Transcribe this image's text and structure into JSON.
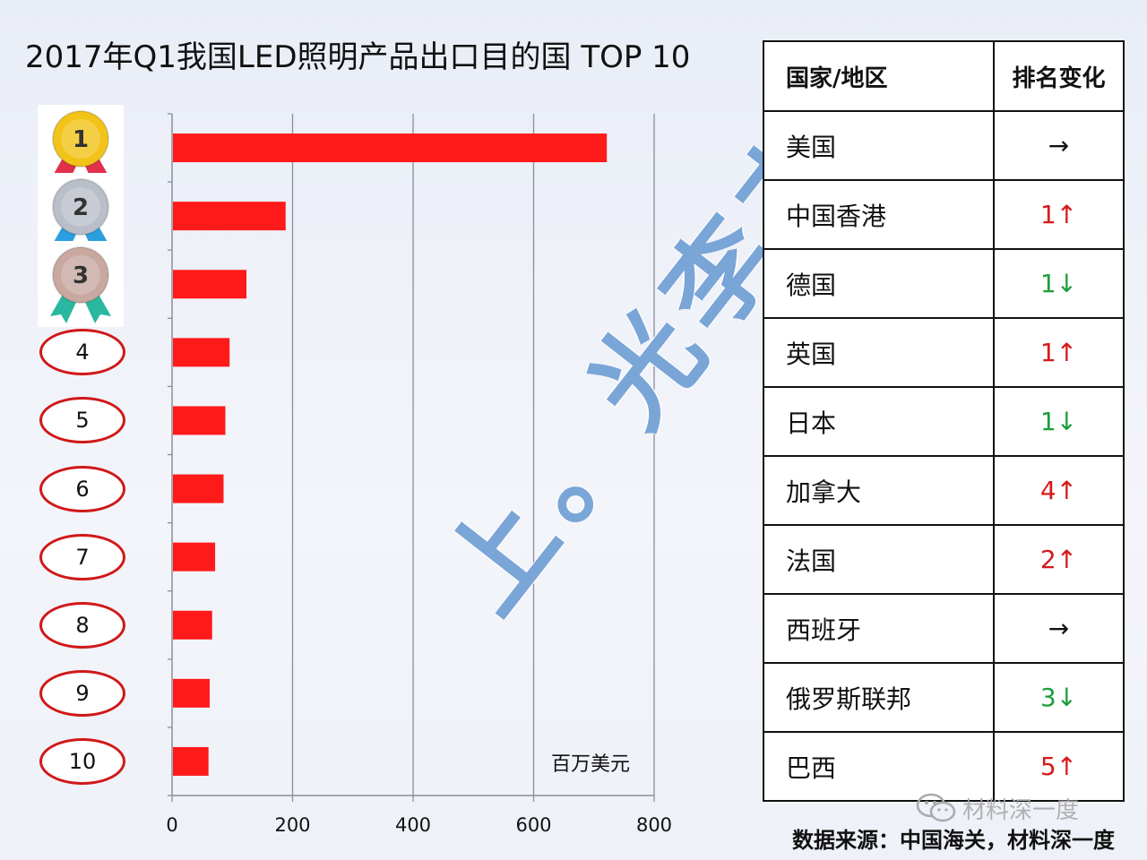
{
  "chart_data": {
    "type": "bar",
    "orientation": "horizontal",
    "title": "2017年Q1我国LED照明产品出口目的国 TOP 10",
    "categories": [
      "1",
      "2",
      "3",
      "4",
      "5",
      "6",
      "7",
      "8",
      "9",
      "10"
    ],
    "values": [
      720,
      187,
      122,
      94,
      87,
      84,
      70,
      65,
      61,
      59
    ],
    "unit_label": "百万美元",
    "xlim": [
      0,
      800
    ],
    "xticks": [
      "0",
      "200",
      "400",
      "600",
      "800"
    ],
    "grid": "vertical",
    "bar_color": "#ff1a1a"
  },
  "medals": [
    {
      "label": "1",
      "color": "#f2c318",
      "ribbon": "#e0304a"
    },
    {
      "label": "2",
      "color": "#b9bec9",
      "ribbon": "#2a9fe0"
    },
    {
      "label": "3",
      "color": "#c9a8a0",
      "ribbon": "#2ab8a0"
    }
  ],
  "rank_labels": [
    "4",
    "5",
    "6",
    "7",
    "8",
    "9",
    "10"
  ],
  "table": {
    "header_country": "国家/地区",
    "header_change": "排名变化",
    "rows": [
      {
        "country": "美国",
        "change": "→",
        "trend": "same"
      },
      {
        "country": "中国香港",
        "change": "1↑",
        "trend": "up"
      },
      {
        "country": "德国",
        "change": "1↓",
        "trend": "down"
      },
      {
        "country": "英国",
        "change": "1↑",
        "trend": "up"
      },
      {
        "country": "日本",
        "change": "1↓",
        "trend": "down"
      },
      {
        "country": "加拿大",
        "change": "4↑",
        "trend": "up"
      },
      {
        "country": "法国",
        "change": "2↑",
        "trend": "up"
      },
      {
        "country": "西班牙",
        "change": "→",
        "trend": "same"
      },
      {
        "country": "俄罗斯联邦",
        "change": "3↓",
        "trend": "down"
      },
      {
        "country": "巴西",
        "change": "5↑",
        "trend": "up"
      }
    ]
  },
  "watermark": "上。光李杰",
  "wechat_label": "材料深一度",
  "source": "数据来源：中国海关，材料深一度"
}
